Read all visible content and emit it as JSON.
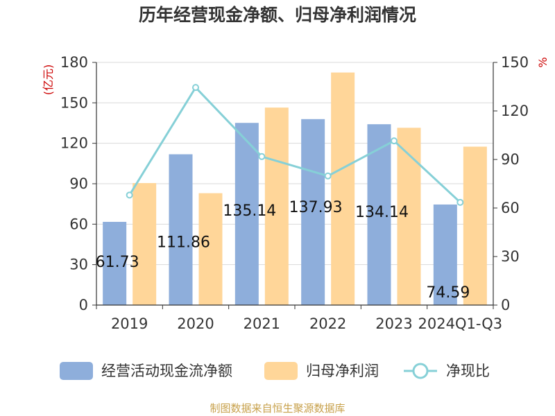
{
  "chart_data": {
    "type": "bar",
    "title": "历年经营现金净额、归母净利润情况",
    "source_note": "制图数据来自恒生聚源数据库",
    "categories": [
      "2019",
      "2020",
      "2021",
      "2022",
      "2023",
      "2024Q1-Q3"
    ],
    "ylabel_left": "(亿元)",
    "ylabel_right": "%",
    "ylim_left": [
      0,
      180
    ],
    "ylim_right": [
      0,
      150
    ],
    "yticks_left": [
      0,
      30,
      60,
      90,
      120,
      150,
      180
    ],
    "yticks_right": [
      0,
      30,
      60,
      90,
      120,
      150
    ],
    "grid": true,
    "legend_position": "bottom",
    "series": [
      {
        "name": "经营活动现金流净额",
        "type": "bar",
        "axis": "left",
        "color": "#8eaedb",
        "values": [
          61.73,
          111.86,
          135.14,
          137.93,
          134.14,
          74.59
        ],
        "labels": [
          "61.73",
          "111.86",
          "135.14",
          "137.93",
          "134.14",
          "74.59"
        ]
      },
      {
        "name": "归母净利润",
        "type": "bar",
        "axis": "left",
        "color": "#ffd699",
        "values": [
          90.5,
          83.0,
          146.5,
          172.5,
          131.5,
          117.5
        ]
      },
      {
        "name": "净现比",
        "type": "line",
        "axis": "right",
        "color": "#86d0d7",
        "values": [
          68,
          134.5,
          91.8,
          79.8,
          101.5,
          63.5
        ]
      }
    ]
  }
}
